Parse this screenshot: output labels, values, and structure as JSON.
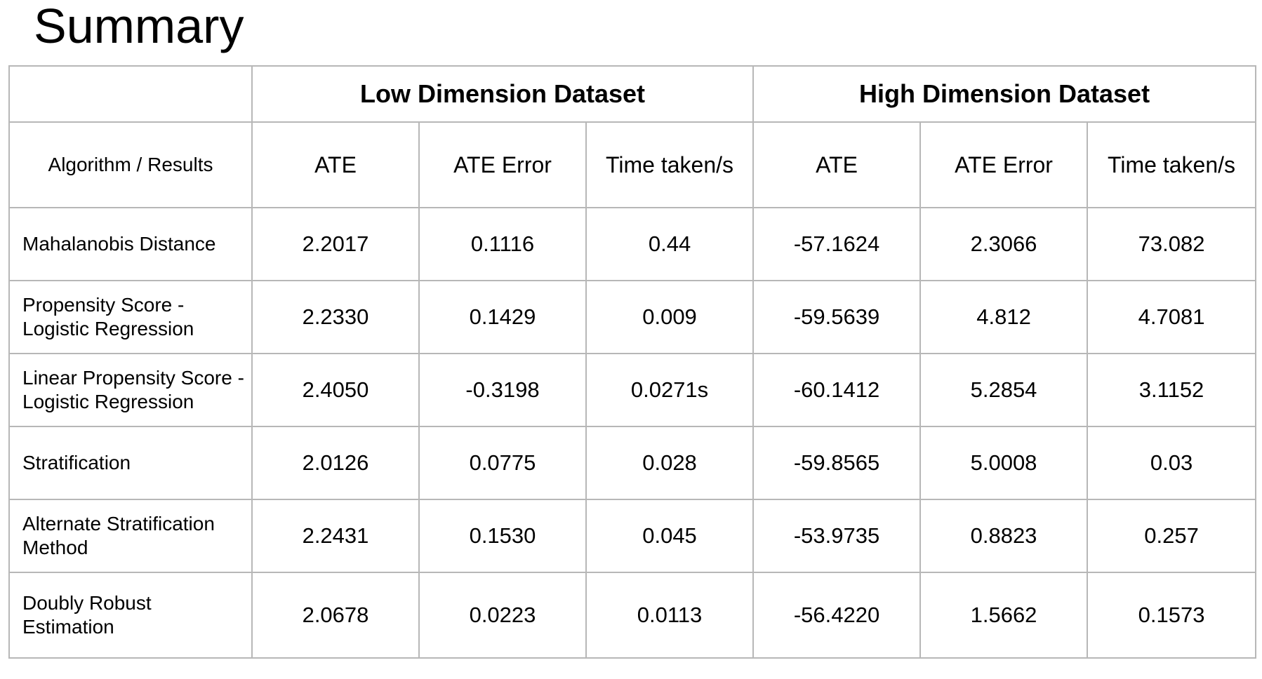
{
  "title": "Summary",
  "table": {
    "corner_label": "",
    "groups": [
      "Low Dimension Dataset",
      "High Dimension Dataset"
    ],
    "row_header_label": "Algorithm / Results",
    "columns": [
      "ATE",
      "ATE Error",
      "Time taken/s",
      "ATE",
      "ATE Error",
      "Time taken/s"
    ],
    "rows": [
      {
        "name": "Mahalanobis Distance",
        "values": [
          "2.2017",
          "0.1116",
          "0.44",
          "-57.1624",
          "2.3066",
          "73.082"
        ]
      },
      {
        "name": "Propensity Score - Logistic Regression",
        "values": [
          "2.2330",
          "0.1429",
          "0.009",
          "-59.5639",
          "4.812",
          "4.7081"
        ]
      },
      {
        "name": "Linear Propensity Score - Logistic Regression",
        "values": [
          "2.4050",
          "-0.3198",
          "0.0271s",
          "-60.1412",
          "5.2854",
          "3.1152"
        ]
      },
      {
        "name": "Stratification",
        "values": [
          "2.0126",
          "0.0775",
          "0.028",
          "-59.8565",
          "5.0008",
          "0.03"
        ]
      },
      {
        "name": "Alternate Stratification Method",
        "values": [
          "2.2431",
          "0.1530",
          "0.045",
          "-53.9735",
          "0.8823",
          "0.257"
        ]
      },
      {
        "name": "Doubly Robust Estimation",
        "values": [
          "2.0678",
          "0.0223",
          "0.0113",
          "-56.4220",
          "1.5662",
          "0.1573"
        ]
      }
    ]
  },
  "colors": {
    "border": "#b7b7b7",
    "text": "#000000",
    "background": "#ffffff"
  }
}
